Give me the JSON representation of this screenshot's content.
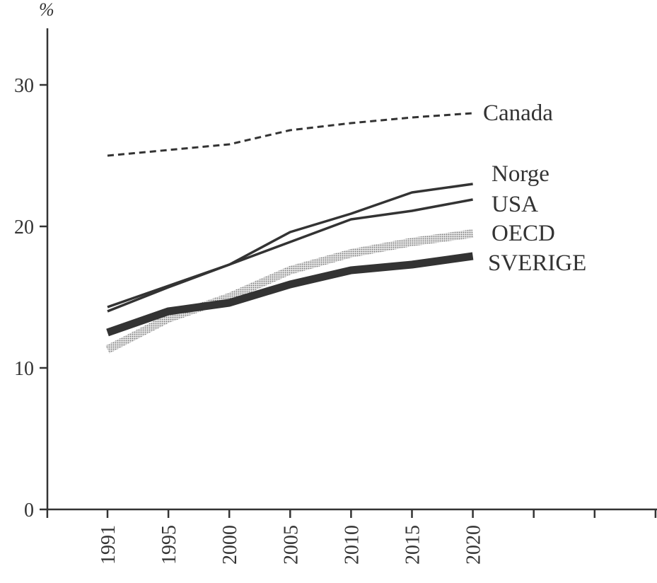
{
  "chart_data": {
    "type": "line",
    "title": "",
    "ylabel": "%",
    "xlabel": "",
    "ylim": [
      0,
      30
    ],
    "yticks": [
      0,
      10,
      20,
      30
    ],
    "x": [
      "1991",
      "1995",
      "2000",
      "2005",
      "2010",
      "2015",
      "2020"
    ],
    "legend_placement": "inline-right",
    "series": [
      {
        "name": "Canada",
        "style": "dashed",
        "color": "#333333",
        "values": [
          25.0,
          25.4,
          25.8,
          26.8,
          27.3,
          27.7,
          28.0
        ]
      },
      {
        "name": "Norge",
        "style": "solid",
        "color": "#333333",
        "values": [
          14.0,
          15.7,
          17.3,
          19.6,
          20.9,
          22.4,
          23.0
        ]
      },
      {
        "name": "USA",
        "style": "solid",
        "color": "#333333",
        "values": [
          14.3,
          15.8,
          17.3,
          18.9,
          20.5,
          21.1,
          21.9
        ]
      },
      {
        "name": "OECD",
        "style": "dotted-band",
        "color": "#b8b8b8",
        "values": [
          11.3,
          13.5,
          15.0,
          16.9,
          18.1,
          18.9,
          19.5
        ]
      },
      {
        "name": "SVERIGE",
        "style": "thick",
        "color": "#333333",
        "values": [
          12.5,
          14.0,
          14.6,
          15.9,
          16.9,
          17.3,
          17.9
        ]
      }
    ]
  }
}
